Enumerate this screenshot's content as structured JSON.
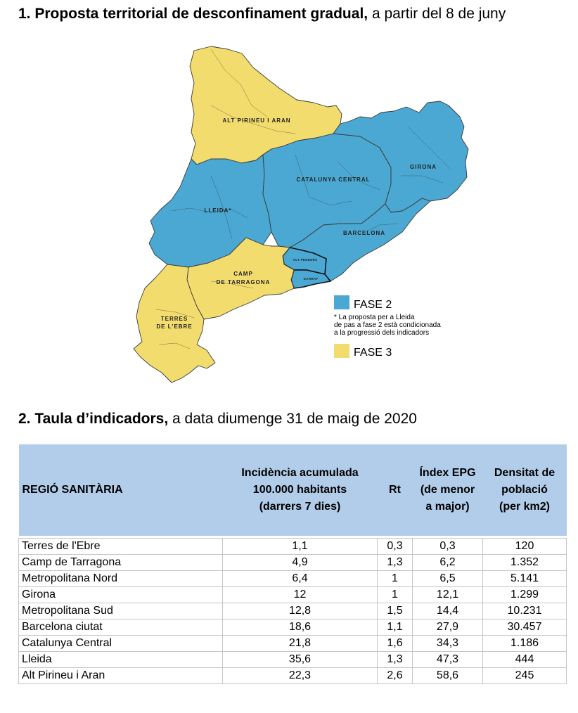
{
  "heading1": {
    "bold": "1. Proposta territorial de desconfinament gradual,",
    "rest": " a partir del 8 de juny"
  },
  "map": {
    "regions": [
      {
        "name": "alt-pirineu-i-aran",
        "label": "ALT PIRINEU I ARAN",
        "phase": "3"
      },
      {
        "name": "lleida",
        "label": "LLEIDA*",
        "phase": "2"
      },
      {
        "name": "catalunya-central",
        "label": "CATALUNYA CENTRAL",
        "phase": "2"
      },
      {
        "name": "girona",
        "label": "GIRONA",
        "phase": "2"
      },
      {
        "name": "barcelona",
        "label": "BARCELONA",
        "phase": "2"
      },
      {
        "name": "alt-penedes",
        "label": "ALT PENEDÈS",
        "phase": "2"
      },
      {
        "name": "garraf",
        "label": "GARRAF",
        "phase": "2"
      },
      {
        "name": "camp-de-tarragona",
        "label_lines": [
          "CAMP",
          "DE TARRAGONA"
        ],
        "phase": "3"
      },
      {
        "name": "terres-de-lebre",
        "label_lines": [
          "TERRES",
          "DE L'EBRE"
        ],
        "phase": "3"
      }
    ],
    "legend": {
      "fase2": "FASE 2",
      "note_lines": [
        "* La proposta per a Lleida",
        "de pas a fase 2 està condicionada",
        "a la progressió dels indicadors"
      ],
      "fase3": "FASE 3"
    },
    "colors": {
      "fase2": "#4aa8d2",
      "fase3": "#f3dc6e"
    }
  },
  "heading2": {
    "bold": "2. Taula d’indicadors,",
    "rest": " a data diumenge 31 de maig de 2020"
  },
  "table": {
    "headers": [
      [
        "REGIÓ SANITÀRIA"
      ],
      [
        "Incidència acumulada",
        "100.000 habitants",
        "(darrers 7 dies)"
      ],
      [
        "Rt"
      ],
      [
        "Índex EPG",
        "(de menor",
        "a major)"
      ],
      [
        "Densitat de",
        "població",
        "(per km2)"
      ]
    ],
    "rows": [
      [
        "Terres de l'Ebre",
        "1,1",
        "0,3",
        "0,3",
        "120"
      ],
      [
        "Camp de Tarragona",
        "4,9",
        "1,3",
        "6,2",
        "1.352"
      ],
      [
        "Metropolitana Nord",
        "6,4",
        "1",
        "6,5",
        "5.141"
      ],
      [
        "Girona",
        "12",
        "1",
        "12,1",
        "1.299"
      ],
      [
        "Metropolitana Sud",
        "12,8",
        "1,5",
        "14,4",
        "10.231"
      ],
      [
        "Barcelona ciutat",
        "18,6",
        "1,1",
        "27,9",
        "30.457"
      ],
      [
        "Catalunya Central",
        "21,8",
        "1,6",
        "34,3",
        "1.186"
      ],
      [
        "Lleida",
        "35,6",
        "1,3",
        "47,3",
        "444"
      ],
      [
        "Alt Pirineu i Aran",
        "22,3",
        "2,6",
        "58,6",
        "245"
      ]
    ],
    "header_color": "#b2cdea"
  }
}
